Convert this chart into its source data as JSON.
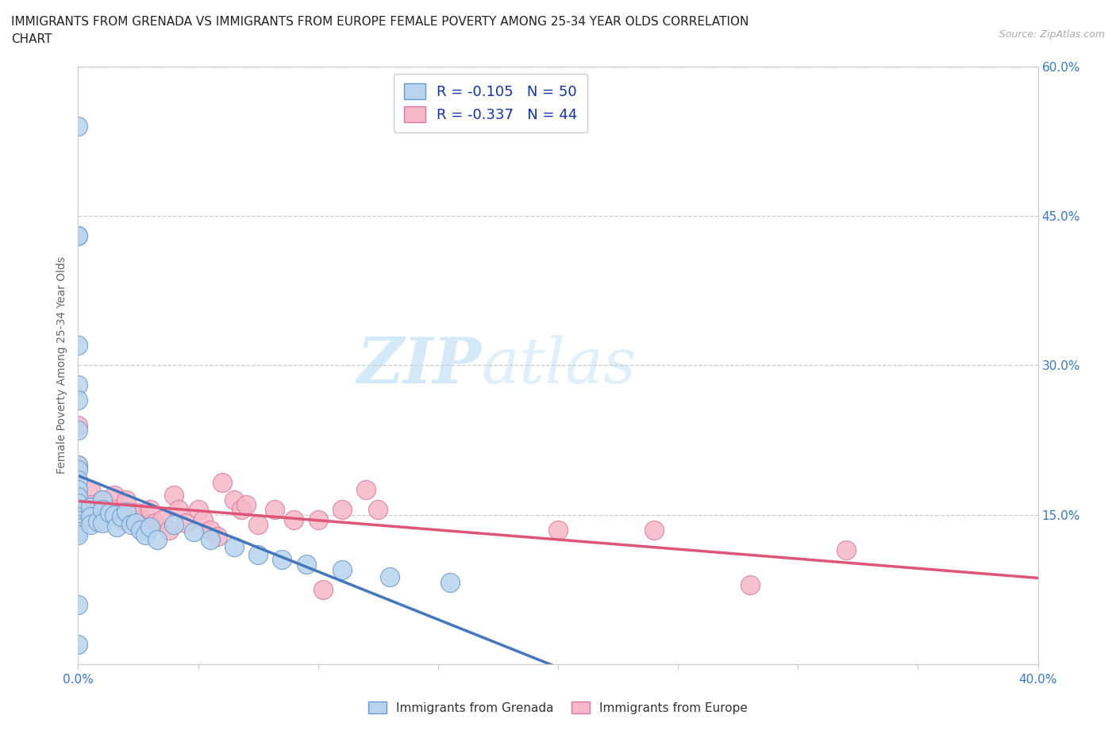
{
  "title_line1": "IMMIGRANTS FROM GRENADA VS IMMIGRANTS FROM EUROPE FEMALE POVERTY AMONG 25-34 YEAR OLDS CORRELATION",
  "title_line2": "CHART",
  "source_text": "Source: ZipAtlas.com",
  "ylabel": "Female Poverty Among 25-34 Year Olds",
  "xlim": [
    0.0,
    0.4
  ],
  "ylim": [
    0.0,
    0.6
  ],
  "xticks": [
    0.0,
    0.05,
    0.1,
    0.15,
    0.2,
    0.25,
    0.3,
    0.35,
    0.4
  ],
  "ytick_pos": [
    0.0,
    0.15,
    0.3,
    0.45,
    0.6
  ],
  "ytick_labels_right": [
    "",
    "15.0%",
    "30.0%",
    "45.0%",
    "60.0%"
  ],
  "grenada_R": -0.105,
  "grenada_N": 50,
  "europe_R": -0.337,
  "europe_N": 44,
  "grenada_fill": "#b8d4ee",
  "grenada_edge": "#6699cc",
  "grenada_line": "#4477bb",
  "grenada_dash": "#88aadd",
  "europe_fill": "#f5b8c8",
  "europe_edge": "#dd7799",
  "europe_line": "#dd5577",
  "grid_color": "#cccccc",
  "tick_color": "#3377cc",
  "label_color": "#666666",
  "title_color": "#222222",
  "bg_color": "#ffffff",
  "watermark_text": "ZIPatlas",
  "watermark_color": "#d5eaf8",
  "grenada_x": [
    0.0,
    0.0,
    0.0,
    0.0,
    0.0,
    0.0,
    0.0,
    0.0,
    0.0,
    0.0,
    0.0,
    0.0,
    0.0,
    0.0,
    0.0,
    0.0,
    0.0,
    0.0,
    0.0,
    0.0,
    0.005,
    0.005,
    0.005,
    0.008,
    0.01,
    0.01,
    0.01,
    0.013,
    0.015,
    0.016,
    0.018,
    0.02,
    0.022,
    0.024,
    0.026,
    0.028,
    0.03,
    0.033,
    0.04,
    0.048,
    0.055,
    0.065,
    0.075,
    0.085,
    0.095,
    0.11,
    0.13,
    0.155,
    0.0,
    0.0
  ],
  "grenada_y": [
    0.54,
    0.43,
    0.43,
    0.32,
    0.28,
    0.265,
    0.235,
    0.2,
    0.195,
    0.185,
    0.175,
    0.168,
    0.162,
    0.155,
    0.148,
    0.144,
    0.14,
    0.137,
    0.133,
    0.13,
    0.158,
    0.148,
    0.14,
    0.143,
    0.165,
    0.155,
    0.142,
    0.152,
    0.15,
    0.138,
    0.148,
    0.153,
    0.14,
    0.142,
    0.135,
    0.13,
    0.138,
    0.125,
    0.14,
    0.133,
    0.125,
    0.118,
    0.11,
    0.105,
    0.1,
    0.095,
    0.088,
    0.082,
    0.06,
    0.02
  ],
  "europe_x": [
    0.0,
    0.0,
    0.0,
    0.005,
    0.005,
    0.008,
    0.01,
    0.012,
    0.015,
    0.015,
    0.018,
    0.02,
    0.022,
    0.024,
    0.025,
    0.028,
    0.03,
    0.032,
    0.035,
    0.038,
    0.04,
    0.042,
    0.045,
    0.05,
    0.052,
    0.055,
    0.058,
    0.06,
    0.065,
    0.068,
    0.07,
    0.075,
    0.082,
    0.09,
    0.1,
    0.102,
    0.11,
    0.12,
    0.125,
    0.2,
    0.24,
    0.28,
    0.32,
    0.0
  ],
  "europe_y": [
    0.24,
    0.2,
    0.155,
    0.175,
    0.16,
    0.155,
    0.165,
    0.155,
    0.17,
    0.155,
    0.145,
    0.165,
    0.152,
    0.145,
    0.152,
    0.14,
    0.155,
    0.142,
    0.145,
    0.135,
    0.17,
    0.155,
    0.142,
    0.155,
    0.145,
    0.135,
    0.128,
    0.182,
    0.165,
    0.155,
    0.16,
    0.14,
    0.155,
    0.145,
    0.145,
    0.075,
    0.155,
    0.175,
    0.155,
    0.135,
    0.135,
    0.08,
    0.115,
    0.155
  ]
}
